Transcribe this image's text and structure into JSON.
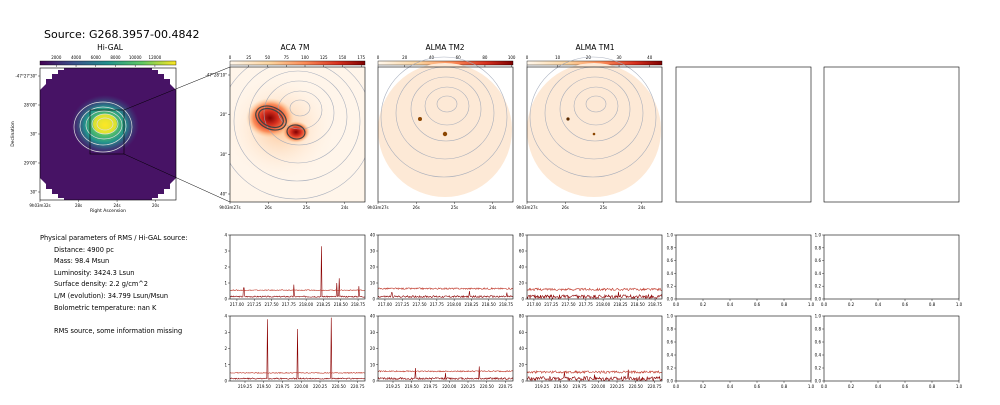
{
  "header": {
    "source_title": "Source: G268.3957-00.4842"
  },
  "panels": {
    "higal": {
      "title": "Hi-GAL",
      "colorbar_ticks": [
        "2000",
        "4000",
        "6000",
        "8000",
        "10000",
        "12000"
      ],
      "dec_ticks": [
        "-47°27'30\"",
        "28'00\"",
        "30\"",
        "29'00\"",
        "30\""
      ],
      "ra_ticks": [
        "9h03m32s",
        "28s",
        "24s",
        "20s"
      ],
      "xlabel": "Right Ascension",
      "ylabel": "Declination"
    },
    "aca": {
      "title": "ACA 7M",
      "colorbar_ticks": [
        "0",
        "25",
        "50",
        "75",
        "100",
        "125",
        "150",
        "175"
      ],
      "dec_ticks": [
        "-47°28'10\"",
        "20\"",
        "30\"",
        "40\""
      ],
      "ra_ticks": [
        "9h03m27s",
        "26s",
        "25s",
        "24s"
      ]
    },
    "tm2": {
      "title": "ALMA TM2",
      "colorbar_ticks": [
        "0",
        "20",
        "40",
        "60",
        "80",
        "100"
      ],
      "ra_ticks": [
        "9h03m27s",
        "26s",
        "25s",
        "24s"
      ]
    },
    "tm1": {
      "title": "ALMA TM1",
      "colorbar_ticks": [
        "0",
        "10",
        "20",
        "30",
        "40"
      ],
      "ra_ticks": [
        "9h03m27s",
        "26s",
        "25s",
        "24s"
      ]
    }
  },
  "params": {
    "heading": "Physical parameters of RMS / Hi-GAL source:",
    "lines": [
      "Distance: 4900 pc",
      "Mass: 98.4 Msun",
      "Luminosity: 3424.3 Lsun",
      "Surface density: 2.2 g/cm^2",
      "L/M (evolution): 34.799 Lsun/Msun",
      "Bolometric temperature: nan K"
    ],
    "note": "RMS source, some information missing"
  },
  "spectra": {
    "top_x_ticks": [
      "217.00",
      "217.25",
      "217.50",
      "217.75",
      "218.00",
      "218.25",
      "218.50",
      "218.75"
    ],
    "bottom_x_ticks": [
      "219.25",
      "219.50",
      "219.75",
      "220.00",
      "220.25",
      "220.50",
      "220.75"
    ],
    "empty_ticks": [
      "0.0",
      "0.2",
      "0.4",
      "0.6",
      "0.8",
      "1.0"
    ]
  },
  "chart_data": [
    {
      "type": "line",
      "panel": "ACA 7M spectrum, upper band",
      "x_range": [
        216.9,
        218.85
      ],
      "ylim": [
        0,
        4
      ],
      "y_ticks": [
        "0",
        "1",
        "2",
        "3",
        "4"
      ],
      "series": [
        {
          "baseline": 0.15,
          "noise": 0.04,
          "peaks": [
            [
              217.1,
              0.7
            ],
            [
              217.82,
              0.9
            ],
            [
              218.22,
              3.3
            ],
            [
              218.44,
              1.0
            ],
            [
              218.48,
              1.3
            ],
            [
              218.76,
              0.8
            ]
          ]
        },
        {
          "baseline": 0.55,
          "noise": 0.03,
          "peaks": []
        }
      ]
    },
    {
      "type": "line",
      "panel": "ALMA TM2 spectrum, upper band",
      "x_range": [
        216.9,
        218.85
      ],
      "ylim": [
        0,
        40
      ],
      "y_ticks": [
        "0",
        "10",
        "20",
        "30",
        "40"
      ],
      "series": [
        {
          "baseline": 1.5,
          "noise": 0.6,
          "peaks": [
            [
              217.1,
              4
            ],
            [
              218.22,
              5
            ],
            [
              218.76,
              4
            ]
          ]
        },
        {
          "baseline": 6.5,
          "noise": 0.5,
          "peaks": []
        }
      ]
    },
    {
      "type": "line",
      "panel": "ALMA TM1 spectrum, upper band",
      "x_range": [
        216.9,
        218.85
      ],
      "ylim": [
        0,
        80
      ],
      "y_ticks": [
        "0",
        "20",
        "40",
        "60",
        "80"
      ],
      "series": [
        {
          "baseline": 3,
          "noise": 2.5,
          "peaks": [
            [
              218.22,
              9
            ]
          ]
        },
        {
          "baseline": 12,
          "noise": 1.5,
          "peaks": []
        }
      ]
    },
    {
      "type": "line",
      "panel": "ACA 7M spectrum, lower band",
      "x_range": [
        219.05,
        220.85
      ],
      "ylim": [
        0,
        4
      ],
      "y_ticks": [
        "0",
        "1",
        "2",
        "3",
        "4"
      ],
      "series": [
        {
          "baseline": 0.15,
          "noise": 0.04,
          "peaks": [
            [
              219.55,
              3.8
            ],
            [
              219.95,
              3.2
            ],
            [
              220.4,
              3.9
            ]
          ]
        },
        {
          "baseline": 0.5,
          "noise": 0.03,
          "peaks": []
        }
      ]
    },
    {
      "type": "line",
      "panel": "ALMA TM2 spectrum, lower band",
      "x_range": [
        219.05,
        220.85
      ],
      "ylim": [
        0,
        40
      ],
      "y_ticks": [
        "0",
        "10",
        "20",
        "30",
        "40"
      ],
      "series": [
        {
          "baseline": 1.5,
          "noise": 0.6,
          "peaks": [
            [
              219.55,
              8
            ],
            [
              219.95,
              5
            ],
            [
              220.4,
              9
            ]
          ]
        },
        {
          "baseline": 6,
          "noise": 0.4,
          "peaks": []
        }
      ]
    },
    {
      "type": "line",
      "panel": "ALMA TM1 spectrum, lower band",
      "x_range": [
        219.05,
        220.85
      ],
      "ylim": [
        0,
        80
      ],
      "y_ticks": [
        "0",
        "20",
        "40",
        "60",
        "80"
      ],
      "series": [
        {
          "baseline": 3,
          "noise": 2.5,
          "peaks": [
            [
              219.55,
              12
            ],
            [
              219.95,
              8
            ],
            [
              220.4,
              14
            ]
          ]
        },
        {
          "baseline": 11,
          "noise": 1.5,
          "peaks": []
        }
      ]
    }
  ]
}
